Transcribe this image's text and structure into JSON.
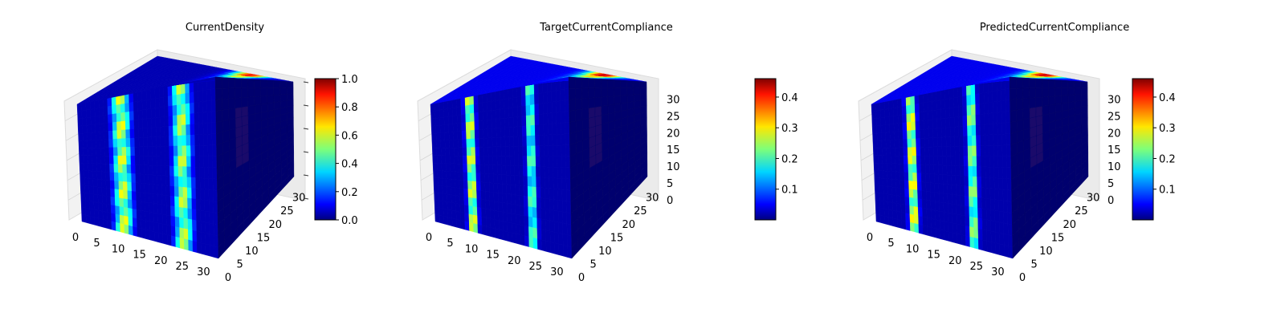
{
  "chart_data": [
    {
      "type": "heatmap",
      "title": "CurrentDensity",
      "x_ticks": [
        "0",
        "5",
        "10",
        "15",
        "20",
        "25",
        "30"
      ],
      "y_ticks": [
        "0",
        "5",
        "10",
        "15",
        "20",
        "25",
        "30"
      ],
      "z_ticks": [],
      "grid": true,
      "colormap": "jet",
      "colorbar": {
        "min": 0.0,
        "max": 1.0,
        "ticks": [
          "0.0",
          "0.2",
          "0.4",
          "0.6",
          "0.8",
          "1.0"
        ],
        "tick_values": [
          0.0,
          0.2,
          0.4,
          0.6,
          0.8,
          1.0
        ]
      },
      "front_face": {
        "band_centers_x": [
          10,
          24
        ],
        "band_peak": [
          0.65,
          0.62
        ],
        "band_halfwidth": 2.2,
        "background": 0.05
      },
      "top_face": {
        "hotspot_x": 23,
        "hotspot_value": 0.95
      }
    },
    {
      "type": "heatmap",
      "title": "TargetCurrentCompliance",
      "x_ticks": [
        "0",
        "5",
        "10",
        "15",
        "20",
        "25",
        "30"
      ],
      "y_ticks": [
        "0",
        "5",
        "10",
        "15",
        "20",
        "25",
        "30"
      ],
      "z_ticks": [
        "0",
        "5",
        "10",
        "15",
        "20",
        "25",
        "30"
      ],
      "grid": true,
      "colormap": "jet",
      "colorbar": {
        "min": 0.0,
        "max": 0.46,
        "ticks": [
          "0.1",
          "0.2",
          "0.3",
          "0.4"
        ],
        "tick_values": [
          0.1,
          0.2,
          0.3,
          0.4
        ]
      },
      "front_face": {
        "band_centers_x": [
          9,
          23
        ],
        "band_peak": [
          0.34,
          0.26
        ],
        "band_halfwidth": 1.1,
        "background": 0.02
      },
      "top_face": {
        "hotspot_x": 23,
        "hotspot_value": 0.44
      }
    },
    {
      "type": "heatmap",
      "title": "PredictedCurrentCompliance",
      "x_ticks": [
        "0",
        "5",
        "10",
        "15",
        "20",
        "25",
        "30"
      ],
      "y_ticks": [
        "0",
        "5",
        "10",
        "15",
        "20",
        "25",
        "30"
      ],
      "z_ticks": [
        "0",
        "5",
        "10",
        "15",
        "20",
        "25",
        "30"
      ],
      "grid": true,
      "colormap": "jet",
      "colorbar": {
        "min": 0.0,
        "max": 0.46,
        "ticks": [
          "0.1",
          "0.2",
          "0.3",
          "0.4"
        ],
        "tick_values": [
          0.1,
          0.2,
          0.3,
          0.4
        ]
      },
      "front_face": {
        "band_centers_x": [
          9,
          23
        ],
        "band_peak": [
          0.36,
          0.3
        ],
        "band_halfwidth": 1.1,
        "background": 0.02
      },
      "top_face": {
        "hotspot_x": 23,
        "hotspot_value": 0.44
      }
    }
  ]
}
